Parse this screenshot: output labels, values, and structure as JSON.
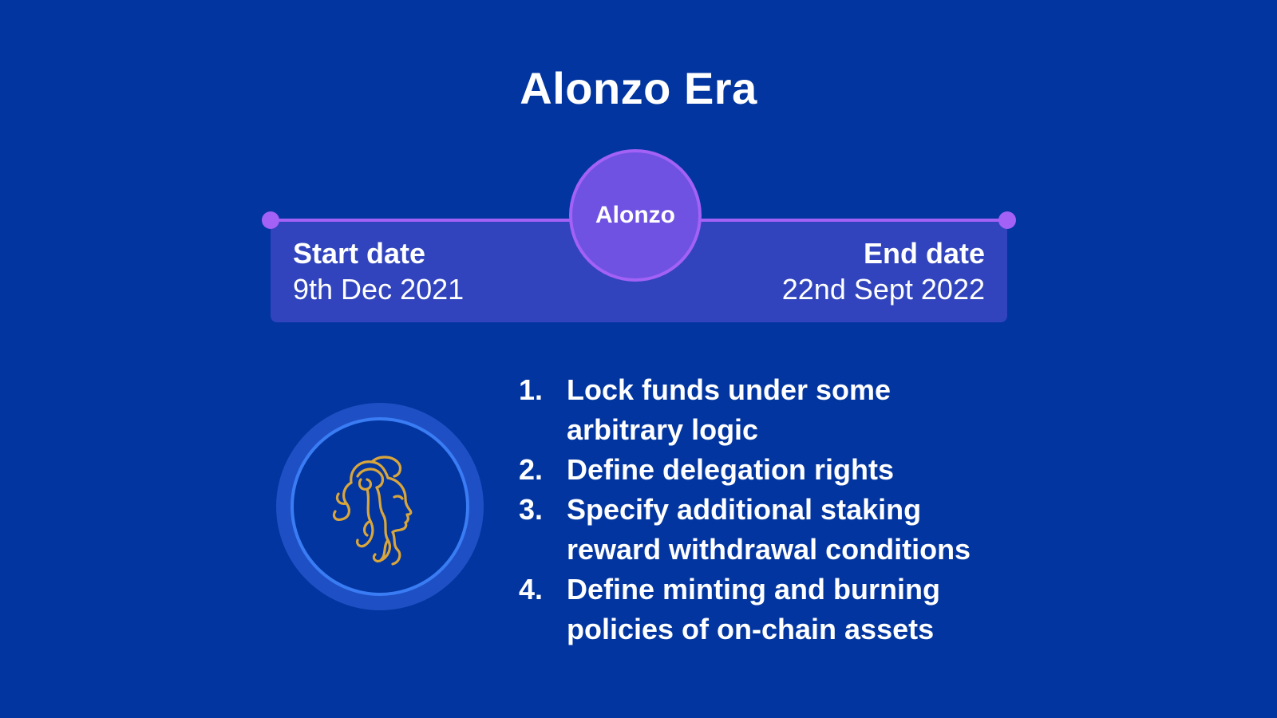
{
  "title": "Alonzo Era",
  "timeline": {
    "era_label": "Alonzo",
    "start": {
      "label": "Start date",
      "value": "9th Dec 2021"
    },
    "end": {
      "label": "End date",
      "value": "22nd Sept 2022"
    }
  },
  "emblem": {
    "icon": "alonzo-head-icon"
  },
  "features": [
    {
      "number": "1.",
      "text": "Lock funds under some\narbitrary logic"
    },
    {
      "number": "2.",
      "text": "Define delegation rights"
    },
    {
      "number": "3.",
      "text": "Specify additional staking\nreward  withdrawal conditions"
    },
    {
      "number": "4.",
      "text": "Define minting and burning\npolicies of on-chain assets"
    }
  ],
  "colors": {
    "background": "#02359f",
    "timeline_accent": "#a361f6",
    "era_node_fill": "#6f52e2",
    "date_panel": "#3144bd",
    "emblem_ring": "#3a7cf4",
    "emblem_stroke": "#d9a63c"
  }
}
